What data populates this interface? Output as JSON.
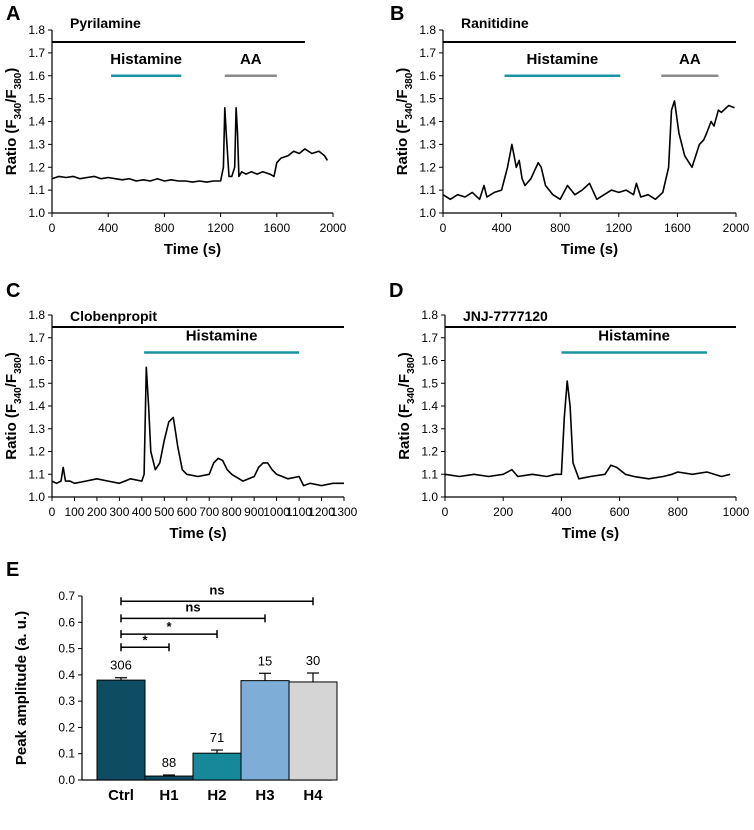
{
  "colors": {
    "trace": "#000000",
    "histamine_bar": "#1a93a6",
    "aa_bar": "#8a8a8a",
    "bar_ctrl": "#0e4c63",
    "bar_h1": "#0e4c63",
    "bar_h2": "#15889a",
    "bar_h3": "#7eaed8",
    "bar_h4": "#d5d5d5"
  },
  "chart_data": [
    {
      "panel": "A",
      "type": "line",
      "title": "Pyrilamine",
      "xlabel": "Time (s)",
      "ylabel": "Ratio (F340/F380)",
      "ylabel_parts": {
        "main": "Ratio (F",
        "sub1": "340",
        "mid": "/F",
        "sub2": "380",
        "end": ")"
      },
      "xlim": [
        0,
        2000
      ],
      "ylim": [
        1.0,
        1.8
      ],
      "xticks": [
        "0",
        "400",
        "800",
        "1200",
        "1600",
        "2000"
      ],
      "yticks": [
        "1.0",
        "1.1",
        "1.2",
        "1.3",
        "1.4",
        "1.5",
        "1.6",
        "1.7",
        "1.8"
      ],
      "grid": false,
      "treatments": [
        {
          "label": "Histamine",
          "start": 420,
          "end": 920,
          "color": "histamine"
        },
        {
          "label": "AA",
          "start": 1230,
          "end": 1600,
          "color": "aa"
        }
      ],
      "drug_bar": {
        "start": 0,
        "end": 1800
      },
      "series": [
        {
          "x": [
            0,
            50,
            100,
            150,
            200,
            250,
            300,
            350,
            400,
            450,
            500,
            550,
            600,
            650,
            700,
            750,
            800,
            850,
            900,
            950,
            1000,
            1050,
            1100,
            1150,
            1200,
            1220,
            1230,
            1240,
            1260,
            1280,
            1300,
            1310,
            1320,
            1330,
            1350,
            1380,
            1420,
            1460,
            1500,
            1550,
            1580,
            1600,
            1630,
            1680,
            1720,
            1760,
            1800,
            1850,
            1900,
            1940,
            1960
          ],
          "y": [
            1.15,
            1.16,
            1.155,
            1.16,
            1.15,
            1.155,
            1.16,
            1.15,
            1.155,
            1.15,
            1.145,
            1.15,
            1.14,
            1.145,
            1.14,
            1.15,
            1.14,
            1.145,
            1.14,
            1.14,
            1.135,
            1.14,
            1.135,
            1.14,
            1.14,
            1.2,
            1.46,
            1.35,
            1.16,
            1.16,
            1.2,
            1.46,
            1.35,
            1.16,
            1.18,
            1.17,
            1.18,
            1.17,
            1.18,
            1.17,
            1.16,
            1.22,
            1.24,
            1.25,
            1.27,
            1.26,
            1.28,
            1.26,
            1.27,
            1.25,
            1.23
          ]
        }
      ]
    },
    {
      "panel": "B",
      "type": "line",
      "title": "Ranitidine",
      "xlabel": "Time (s)",
      "ylabel": "Ratio (F340/F380)",
      "ylabel_parts": {
        "main": "Ratio (F",
        "sub1": "340",
        "mid": "/F",
        "sub2": "380",
        "end": ")"
      },
      "xlim": [
        0,
        2000
      ],
      "ylim": [
        1.0,
        1.8
      ],
      "xticks": [
        "0",
        "400",
        "800",
        "1200",
        "1600",
        "2000"
      ],
      "yticks": [
        "1.0",
        "1.1",
        "1.2",
        "1.3",
        "1.4",
        "1.5",
        "1.6",
        "1.7",
        "1.8"
      ],
      "grid": false,
      "treatments": [
        {
          "label": "Histamine",
          "start": 420,
          "end": 1210,
          "color": "histamine"
        },
        {
          "label": "AA",
          "start": 1490,
          "end": 1880,
          "color": "aa"
        }
      ],
      "drug_bar": {
        "start": 0,
        "end": 2000
      },
      "series": [
        {
          "x": [
            0,
            50,
            100,
            150,
            200,
            250,
            280,
            300,
            350,
            400,
            440,
            470,
            500,
            520,
            540,
            560,
            600,
            650,
            670,
            700,
            750,
            800,
            850,
            900,
            950,
            1000,
            1050,
            1100,
            1150,
            1200,
            1250,
            1300,
            1320,
            1350,
            1400,
            1450,
            1500,
            1540,
            1560,
            1580,
            1610,
            1650,
            1700,
            1750,
            1780,
            1800,
            1830,
            1850,
            1880,
            1900,
            1950,
            1990
          ],
          "y": [
            1.08,
            1.06,
            1.08,
            1.07,
            1.09,
            1.06,
            1.12,
            1.07,
            1.09,
            1.1,
            1.2,
            1.3,
            1.2,
            1.23,
            1.15,
            1.12,
            1.15,
            1.22,
            1.2,
            1.12,
            1.08,
            1.06,
            1.12,
            1.08,
            1.1,
            1.13,
            1.06,
            1.08,
            1.1,
            1.09,
            1.1,
            1.08,
            1.13,
            1.07,
            1.08,
            1.06,
            1.09,
            1.2,
            1.45,
            1.49,
            1.35,
            1.25,
            1.2,
            1.3,
            1.32,
            1.35,
            1.4,
            1.38,
            1.45,
            1.44,
            1.47,
            1.46
          ]
        }
      ]
    },
    {
      "panel": "C",
      "type": "line",
      "title": "Clobenpropit",
      "xlabel": "Time (s)",
      "ylabel": "Ratio (F340/F380)",
      "ylabel_parts": {
        "main": "Ratio (F",
        "sub1": "340",
        "mid": "/F",
        "sub2": "380",
        "end": ")"
      },
      "xlim": [
        0,
        1300
      ],
      "ylim": [
        1.0,
        1.8
      ],
      "xticks": [
        "0",
        "100",
        "200",
        "300",
        "400",
        "500",
        "600",
        "700",
        "800",
        "900",
        "1000",
        "1100",
        "1200",
        "1300"
      ],
      "yticks": [
        "1.0",
        "1.1",
        "1.2",
        "1.3",
        "1.4",
        "1.5",
        "1.6",
        "1.7",
        "1.8"
      ],
      "grid": false,
      "treatments": [
        {
          "label": "Histamine",
          "start": 410,
          "end": 1100,
          "color": "histamine"
        }
      ],
      "drug_bar": {
        "start": 0,
        "end": 1300
      },
      "series": [
        {
          "x": [
            0,
            20,
            40,
            50,
            60,
            80,
            100,
            150,
            200,
            250,
            300,
            350,
            400,
            410,
            420,
            430,
            440,
            460,
            480,
            500,
            520,
            540,
            560,
            580,
            600,
            650,
            700,
            720,
            740,
            760,
            780,
            800,
            850,
            900,
            920,
            940,
            960,
            980,
            1000,
            1050,
            1100,
            1120,
            1150,
            1200,
            1250,
            1300
          ],
          "y": [
            1.07,
            1.06,
            1.07,
            1.13,
            1.07,
            1.07,
            1.06,
            1.07,
            1.08,
            1.07,
            1.06,
            1.08,
            1.07,
            1.1,
            1.57,
            1.4,
            1.2,
            1.12,
            1.15,
            1.25,
            1.33,
            1.35,
            1.22,
            1.12,
            1.1,
            1.09,
            1.1,
            1.15,
            1.17,
            1.16,
            1.12,
            1.1,
            1.07,
            1.09,
            1.13,
            1.15,
            1.15,
            1.12,
            1.1,
            1.08,
            1.09,
            1.05,
            1.06,
            1.05,
            1.06,
            1.06
          ]
        }
      ]
    },
    {
      "panel": "D",
      "type": "line",
      "title": "JNJ-7777120",
      "xlabel": "Time (s)",
      "ylabel": "Ratio (F340/F380)",
      "ylabel_parts": {
        "main": "Ratio (F",
        "sub1": "340",
        "mid": "/F",
        "sub2": "380",
        "end": ")"
      },
      "xlim": [
        0,
        1000
      ],
      "ylim": [
        1.0,
        1.8
      ],
      "xticks": [
        "0",
        "200",
        "400",
        "600",
        "800",
        "1000"
      ],
      "yticks": [
        "1.0",
        "1.1",
        "1.2",
        "1.3",
        "1.4",
        "1.5",
        "1.6",
        "1.7",
        "1.8"
      ],
      "grid": false,
      "treatments": [
        {
          "label": "Histamine",
          "start": 400,
          "end": 900,
          "color": "histamine"
        }
      ],
      "drug_bar": {
        "start": 0,
        "end": 1000
      },
      "series": [
        {
          "x": [
            0,
            50,
            100,
            150,
            200,
            230,
            250,
            300,
            350,
            380,
            400,
            410,
            420,
            430,
            440,
            460,
            500,
            550,
            570,
            590,
            620,
            650,
            700,
            750,
            780,
            800,
            850,
            900,
            950,
            980
          ],
          "y": [
            1.1,
            1.09,
            1.1,
            1.09,
            1.1,
            1.12,
            1.09,
            1.1,
            1.09,
            1.1,
            1.1,
            1.35,
            1.51,
            1.4,
            1.15,
            1.08,
            1.09,
            1.1,
            1.14,
            1.13,
            1.1,
            1.09,
            1.08,
            1.09,
            1.1,
            1.11,
            1.1,
            1.11,
            1.09,
            1.1
          ]
        }
      ]
    },
    {
      "panel": "E",
      "type": "bar",
      "categories": [
        "Ctrl",
        "H1",
        "H2",
        "H3",
        "H4"
      ],
      "values": [
        0.38,
        0.015,
        0.102,
        0.378,
        0.373
      ],
      "errors": [
        0.009,
        0.004,
        0.012,
        0.028,
        0.034
      ],
      "n_labels": [
        "306",
        "88",
        "71",
        "15",
        "30"
      ],
      "bar_colors": [
        "bar_ctrl",
        "bar_h1",
        "bar_h2",
        "bar_h3",
        "bar_h4"
      ],
      "ylabel": "Peak amplitude (a. u.)",
      "ylim": [
        0,
        0.7
      ],
      "yticks": [
        "0.0",
        "0.1",
        "0.2",
        "0.3",
        "0.4",
        "0.5",
        "0.6",
        "0.7"
      ],
      "grid": false,
      "significance": [
        {
          "from": 0,
          "to": 1,
          "label": "*",
          "level": 0.505
        },
        {
          "from": 0,
          "to": 2,
          "label": "*",
          "level": 0.555
        },
        {
          "from": 0,
          "to": 3,
          "label": "ns",
          "level": 0.615
        },
        {
          "from": 0,
          "to": 4,
          "label": "ns",
          "level": 0.68
        }
      ]
    }
  ]
}
